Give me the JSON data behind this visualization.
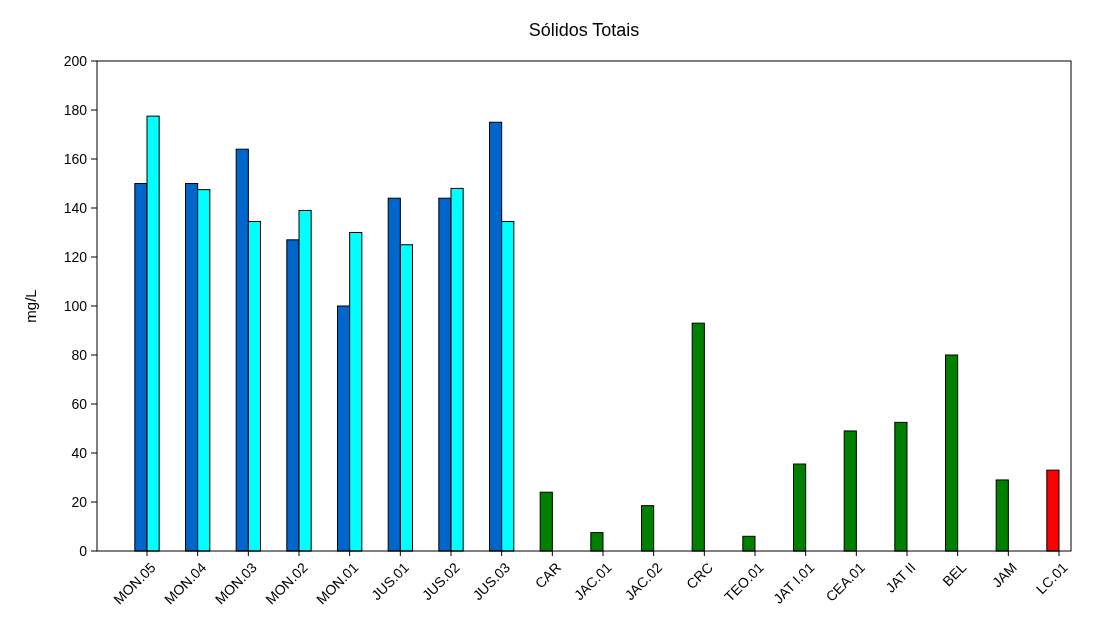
{
  "chart_data": {
    "type": "bar",
    "title": "Sólidos Totais",
    "ylabel": "mg/L",
    "categories": [
      "MON.05",
      "MON.04",
      "MON.03",
      "MON.02",
      "MON.01",
      "JUS.01",
      "JUS.02",
      "JUS.03",
      "CAR",
      "JAC.01",
      "JAC.02",
      "CRC",
      "TEO.01",
      "JAT I.01",
      "CEA.01",
      "JAT II",
      "BEL",
      "JAM",
      "LC.01"
    ],
    "series": [
      {
        "colors": [
          "#0066cc",
          "#0066cc",
          "#0066cc",
          "#0066cc",
          "#0066cc",
          "#0066cc",
          "#0066cc",
          "#0066cc",
          "#008000",
          "#008000",
          "#008000",
          "#008000",
          "#008000",
          "#008000",
          "#008000",
          "#008000",
          "#008000",
          "#008000",
          "#ff0000"
        ],
        "values": [
          150,
          150,
          164,
          127,
          100,
          144,
          144,
          175,
          24,
          7.5,
          18.5,
          93,
          6,
          35.5,
          49,
          52.5,
          80,
          29,
          33
        ]
      },
      {
        "color": "#00ffff",
        "values": [
          177.5,
          147.5,
          134.5,
          139,
          130,
          125,
          148,
          134.5,
          null,
          null,
          null,
          null,
          null,
          null,
          null,
          null,
          null,
          null,
          null
        ]
      }
    ],
    "ylim": [
      0,
      200
    ],
    "yticks": [
      0,
      20,
      40,
      60,
      80,
      100,
      120,
      140,
      160,
      180,
      200
    ]
  }
}
